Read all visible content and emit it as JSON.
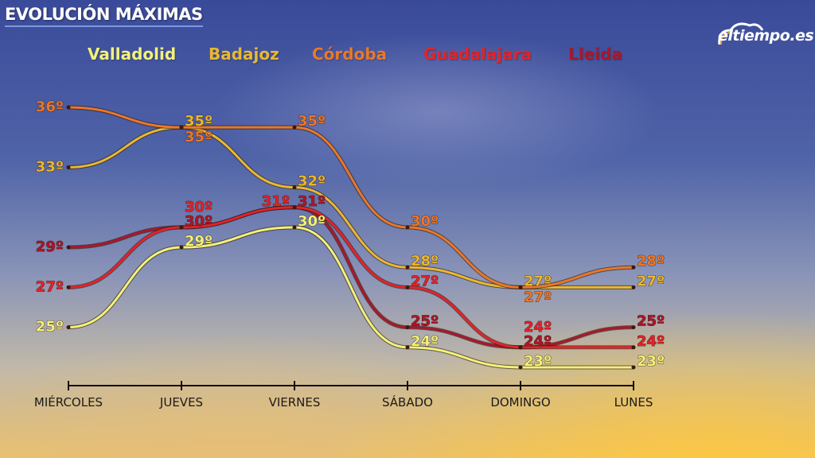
{
  "header": {
    "title": "EVOLUCIÓN MÁXIMAS",
    "logo": "eltiempo.es"
  },
  "chart_data": {
    "type": "line",
    "title": "EVOLUCIÓN MÁXIMAS",
    "categories": [
      "MIÉRCOLES",
      "JUEVES",
      "VIERNES",
      "SÁBADO",
      "DOMINGO",
      "LUNES"
    ],
    "unit": "º",
    "legend": "top",
    "grid": false,
    "series": [
      {
        "name": "Valladolid",
        "color": "#f2f27a",
        "values": [
          25,
          29,
          30,
          24,
          23,
          23
        ]
      },
      {
        "name": "Badajoz",
        "color": "#e8b830",
        "values": [
          33,
          35,
          32,
          28,
          27,
          27
        ]
      },
      {
        "name": "Córdoba",
        "color": "#e8782a",
        "values": [
          36,
          35,
          35,
          30,
          27,
          28
        ]
      },
      {
        "name": "Guadalajara",
        "color": "#e0242a",
        "values": [
          27,
          30,
          31,
          27,
          24,
          24
        ]
      },
      {
        "name": "Lleida",
        "color": "#a8182a",
        "values": [
          29,
          30,
          31,
          25,
          24,
          25
        ]
      }
    ]
  }
}
